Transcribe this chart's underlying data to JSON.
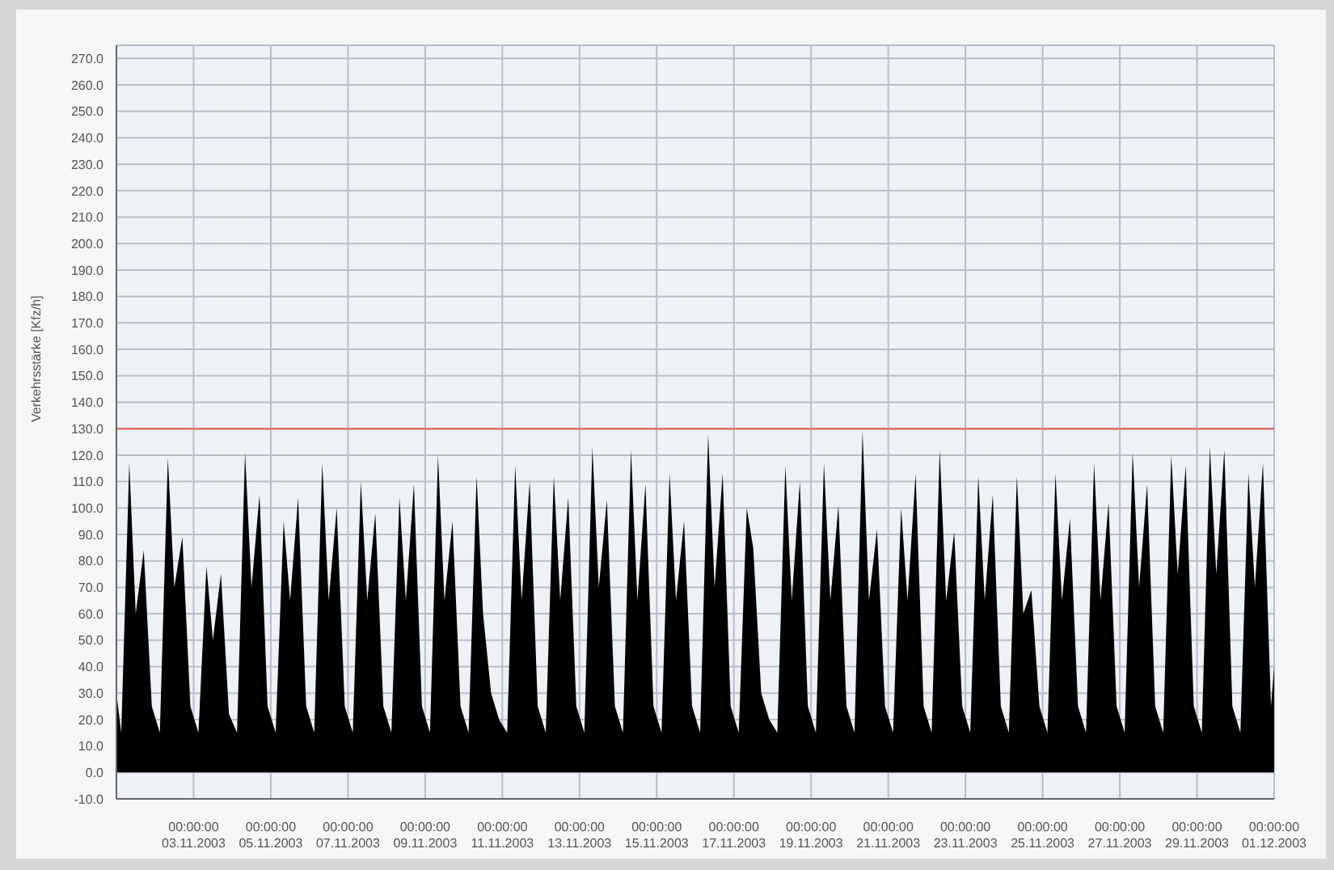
{
  "chart_data": {
    "type": "area",
    "ylabel": "Verkehrsstärke [Kfz/h]",
    "x": [
      "2003-11-01T00:00",
      "2003-11-01T03:00",
      "2003-11-01T08:00",
      "2003-11-01T12:00",
      "2003-11-01T17:00",
      "2003-11-01T22:00",
      "2003-11-02T03:00",
      "2003-11-02T08:00",
      "2003-11-02T12:00",
      "2003-11-02T17:00",
      "2003-11-02T22:00",
      "2003-11-03T03:00",
      "2003-11-03T08:00",
      "2003-11-03T12:00",
      "2003-11-03T17:00",
      "2003-11-03T22:00",
      "2003-11-04T03:00",
      "2003-11-04T08:00",
      "2003-11-04T12:00",
      "2003-11-04T17:00",
      "2003-11-04T22:00",
      "2003-11-05T03:00",
      "2003-11-05T08:00",
      "2003-11-05T12:00",
      "2003-11-05T17:00",
      "2003-11-05T22:00",
      "2003-11-06T03:00",
      "2003-11-06T08:00",
      "2003-11-06T12:00",
      "2003-11-06T17:00",
      "2003-11-06T22:00",
      "2003-11-07T03:00",
      "2003-11-07T08:00",
      "2003-11-07T12:00",
      "2003-11-07T17:00",
      "2003-11-07T22:00",
      "2003-11-08T03:00",
      "2003-11-08T08:00",
      "2003-11-08T12:00",
      "2003-11-08T17:00",
      "2003-11-08T22:00",
      "2003-11-09T03:00",
      "2003-11-09T08:00",
      "2003-11-09T12:00",
      "2003-11-09T17:00",
      "2003-11-09T22:00",
      "2003-11-10T03:00",
      "2003-11-10T08:00",
      "2003-11-10T12:00",
      "2003-11-10T17:00",
      "2003-11-10T22:00",
      "2003-11-11T03:00",
      "2003-11-11T08:00",
      "2003-11-11T12:00",
      "2003-11-11T17:00",
      "2003-11-11T22:00",
      "2003-11-12T03:00",
      "2003-11-12T08:00",
      "2003-11-12T12:00",
      "2003-11-12T17:00",
      "2003-11-12T22:00",
      "2003-11-13T03:00",
      "2003-11-13T08:00",
      "2003-11-13T12:00",
      "2003-11-13T17:00",
      "2003-11-13T22:00",
      "2003-11-14T03:00",
      "2003-11-14T08:00",
      "2003-11-14T12:00",
      "2003-11-14T17:00",
      "2003-11-14T22:00",
      "2003-11-15T03:00",
      "2003-11-15T08:00",
      "2003-11-15T12:00",
      "2003-11-15T17:00",
      "2003-11-15T22:00",
      "2003-11-16T03:00",
      "2003-11-16T08:00",
      "2003-11-16T12:00",
      "2003-11-16T17:00",
      "2003-11-16T22:00",
      "2003-11-17T03:00",
      "2003-11-17T08:00",
      "2003-11-17T12:00",
      "2003-11-17T17:00",
      "2003-11-17T22:00",
      "2003-11-18T03:00",
      "2003-11-18T08:00",
      "2003-11-18T12:00",
      "2003-11-18T17:00",
      "2003-11-18T22:00",
      "2003-11-19T03:00",
      "2003-11-19T08:00",
      "2003-11-19T12:00",
      "2003-11-19T17:00",
      "2003-11-19T22:00",
      "2003-11-20T03:00",
      "2003-11-20T08:00",
      "2003-11-20T12:00",
      "2003-11-20T17:00",
      "2003-11-20T22:00",
      "2003-11-21T03:00",
      "2003-11-21T08:00",
      "2003-11-21T12:00",
      "2003-11-21T17:00",
      "2003-11-21T22:00",
      "2003-11-22T03:00",
      "2003-11-22T08:00",
      "2003-11-22T12:00",
      "2003-11-22T17:00",
      "2003-11-22T22:00",
      "2003-11-23T03:00",
      "2003-11-23T08:00",
      "2003-11-23T12:00",
      "2003-11-23T17:00",
      "2003-11-23T22:00",
      "2003-11-24T03:00",
      "2003-11-24T08:00",
      "2003-11-24T12:00",
      "2003-11-24T17:00",
      "2003-11-24T22:00",
      "2003-11-25T03:00",
      "2003-11-25T08:00",
      "2003-11-25T12:00",
      "2003-11-25T17:00",
      "2003-11-25T22:00",
      "2003-11-26T03:00",
      "2003-11-26T08:00",
      "2003-11-26T12:00",
      "2003-11-26T17:00",
      "2003-11-26T22:00",
      "2003-11-27T03:00",
      "2003-11-27T08:00",
      "2003-11-27T12:00",
      "2003-11-27T17:00",
      "2003-11-27T22:00",
      "2003-11-28T03:00",
      "2003-11-28T08:00",
      "2003-11-28T12:00",
      "2003-11-28T17:00",
      "2003-11-28T22:00",
      "2003-11-29T03:00",
      "2003-11-29T08:00",
      "2003-11-29T12:00",
      "2003-11-29T17:00",
      "2003-11-29T22:00",
      "2003-11-30T03:00",
      "2003-11-30T08:00",
      "2003-11-30T12:00",
      "2003-11-30T17:00",
      "2003-11-30T22:00",
      "2003-12-01T00:00"
    ],
    "series": [
      {
        "color": "#000000",
        "values": [
          30,
          15,
          117,
          60,
          84,
          25,
          15,
          119,
          70,
          89,
          25,
          15,
          78,
          50,
          75,
          22,
          15,
          121,
          70,
          105,
          25,
          15,
          95,
          65,
          104,
          25,
          15,
          117,
          65,
          100,
          25,
          15,
          110,
          65,
          98,
          25,
          15,
          104,
          65,
          109,
          25,
          15,
          120,
          65,
          95,
          25,
          15,
          112,
          60,
          30,
          20,
          15,
          116,
          65,
          110,
          25,
          15,
          112,
          65,
          104,
          25,
          15,
          123,
          70,
          103,
          25,
          15,
          122,
          65,
          109,
          25,
          15,
          113,
          65,
          95,
          25,
          15,
          128,
          70,
          113,
          25,
          15,
          100,
          85,
          30,
          20,
          15,
          116,
          65,
          110,
          25,
          15,
          117,
          65,
          101,
          25,
          15,
          129,
          65,
          92,
          25,
          15,
          100,
          65,
          113,
          25,
          15,
          122,
          65,
          91,
          25,
          15,
          112,
          65,
          105,
          25,
          15,
          112,
          60,
          69,
          25,
          15,
          113,
          65,
          96,
          25,
          15,
          117,
          65,
          102,
          25,
          15,
          121,
          70,
          109,
          25,
          15,
          120,
          75,
          116,
          25,
          15,
          123,
          75,
          122,
          25,
          15,
          113,
          70,
          117,
          25,
          40
        ]
      }
    ],
    "xlim": [
      "2003-11-01T00:00",
      "2003-12-01T00:00"
    ],
    "xticks": [
      {
        "value": "2003-11-03",
        "label": "00:00:00\n03.11.2003"
      },
      {
        "value": "2003-11-05",
        "label": "00:00:00\n05.11.2003"
      },
      {
        "value": "2003-11-07",
        "label": "00:00:00\n07.11.2003"
      },
      {
        "value": "2003-11-09",
        "label": "00:00:00\n09.11.2003"
      },
      {
        "value": "2003-11-11",
        "label": "00:00:00\n11.11.2003"
      },
      {
        "value": "2003-11-13",
        "label": "00:00:00\n13.11.2003"
      },
      {
        "value": "2003-11-15",
        "label": "00:00:00\n15.11.2003"
      },
      {
        "value": "2003-11-17",
        "label": "00:00:00\n17.11.2003"
      },
      {
        "value": "2003-11-19",
        "label": "00:00:00\n19.11.2003"
      },
      {
        "value": "2003-11-21",
        "label": "00:00:00\n21.11.2003"
      },
      {
        "value": "2003-11-23",
        "label": "00:00:00\n23.11.2003"
      },
      {
        "value": "2003-11-25",
        "label": "00:00:00\n25.11.2003"
      },
      {
        "value": "2003-11-27",
        "label": "00:00:00\n27.11.2003"
      },
      {
        "value": "2003-11-29",
        "label": "00:00:00\n29.11.2003"
      },
      {
        "value": "2003-12-01",
        "label": "00:00:00\n01.12.2003"
      }
    ],
    "ylim": [
      -10,
      275
    ],
    "yticks": [
      {
        "value": -10,
        "label": "-10.0"
      },
      {
        "value": 0,
        "label": "0.0"
      },
      {
        "value": 10,
        "label": "10.0"
      },
      {
        "value": 20,
        "label": "20.0"
      },
      {
        "value": 30,
        "label": "30.0"
      },
      {
        "value": 40,
        "label": "40.0"
      },
      {
        "value": 50,
        "label": "50.0"
      },
      {
        "value": 60,
        "label": "60.0"
      },
      {
        "value": 70,
        "label": "70.0"
      },
      {
        "value": 80,
        "label": "80.0"
      },
      {
        "value": 90,
        "label": "90.0"
      },
      {
        "value": 100,
        "label": "100.0"
      },
      {
        "value": 110,
        "label": "110.0"
      },
      {
        "value": 120,
        "label": "120.0"
      },
      {
        "value": 130,
        "label": "130.0"
      },
      {
        "value": 140,
        "label": "140.0"
      },
      {
        "value": 150,
        "label": "150.0"
      },
      {
        "value": 160,
        "label": "160.0"
      },
      {
        "value": 170,
        "label": "170.0"
      },
      {
        "value": 180,
        "label": "180.0"
      },
      {
        "value": 190,
        "label": "190.0"
      },
      {
        "value": 200,
        "label": "200.0"
      },
      {
        "value": 210,
        "label": "210.0"
      },
      {
        "value": 220,
        "label": "220.0"
      },
      {
        "value": 230,
        "label": "230.0"
      },
      {
        "value": 240,
        "label": "240.0"
      },
      {
        "value": 250,
        "label": "250.0"
      },
      {
        "value": 260,
        "label": "260.0"
      },
      {
        "value": 270,
        "label": "270.0"
      }
    ],
    "grid": true,
    "ref_lines": [
      {
        "axis": "y",
        "value": 130,
        "color": "#e07070"
      }
    ]
  }
}
